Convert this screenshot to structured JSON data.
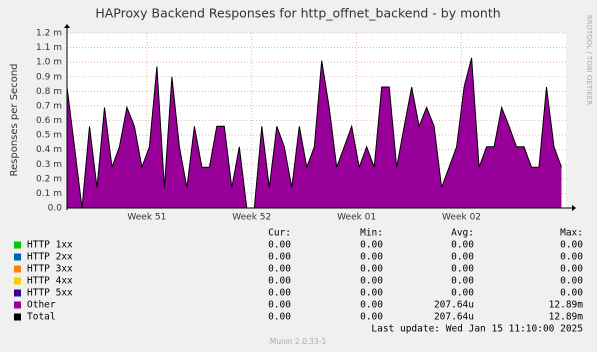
{
  "chart_data": {
    "type": "area",
    "title": "HAProxy Backend Responses for http_offnet_backend - by month",
    "y_label": "Responses per Second",
    "side_text": "RRDTOOL / TOBI OETIKER",
    "footer": "Munin 2.0.33-1",
    "last_update": "Last update: Wed Jan 15 11:10:00 2025",
    "grid": true,
    "xlim": [
      0,
      33.3
    ],
    "xticks": [
      {
        "value": 5.33,
        "label": "Week 51"
      },
      {
        "value": 12.33,
        "label": "Week 52"
      },
      {
        "value": 19.33,
        "label": "Week 01"
      },
      {
        "value": 26.33,
        "label": "Week 02"
      }
    ],
    "ylim": [
      0,
      1.2
    ],
    "yticks": [
      {
        "value": 0,
        "label": "0.0"
      },
      {
        "value": 0.1,
        "label": "0.1 m"
      },
      {
        "value": 0.2,
        "label": "0.2 m"
      },
      {
        "value": 0.3,
        "label": "0.3 m"
      },
      {
        "value": 0.4,
        "label": "0.4 m"
      },
      {
        "value": 0.5,
        "label": "0.5 m"
      },
      {
        "value": 0.6,
        "label": "0.6 m"
      },
      {
        "value": 0.7,
        "label": "0.7 m"
      },
      {
        "value": 0.8,
        "label": "0.8 m"
      },
      {
        "value": 0.9,
        "label": "0.9 m"
      },
      {
        "value": 1.0,
        "label": "1.0 m"
      },
      {
        "value": 1.1,
        "label": "1.1 m"
      },
      {
        "value": 1.2,
        "label": "1.2 m"
      }
    ],
    "stat_headers": [
      "Cur:",
      "Min:",
      "Avg:",
      "Max:"
    ],
    "x": [
      0,
      0.5,
      1,
      1.5,
      2,
      2.5,
      3,
      3.5,
      4,
      4.5,
      5,
      5.5,
      6,
      6.5,
      7,
      7.5,
      8,
      8.5,
      9,
      9.5,
      10,
      10.5,
      11,
      11.5,
      12,
      12.5,
      13,
      13.5,
      14,
      14.5,
      15,
      15.5,
      16,
      16.5,
      17,
      17.5,
      18,
      18.5,
      19,
      19.5,
      20,
      20.5,
      21,
      21.5,
      22,
      22.5,
      23,
      23.5,
      24,
      24.5,
      25,
      25.5,
      26,
      26.5,
      27,
      27.5,
      28,
      28.5,
      29,
      29.5,
      30,
      30.5,
      31,
      31.5,
      32,
      32.5,
      33
    ],
    "series": [
      {
        "name": "HTTP 1xx",
        "color": "#00cc00",
        "stats": [
          "0.00",
          "0.00",
          "0.00",
          "0.00"
        ]
      },
      {
        "name": "HTTP 2xx",
        "color": "#0066b3",
        "stats": [
          "0.00",
          "0.00",
          "0.00",
          "0.00"
        ]
      },
      {
        "name": "HTTP 3xx",
        "color": "#ff8000",
        "stats": [
          "0.00",
          "0.00",
          "0.00",
          "0.00"
        ]
      },
      {
        "name": "HTTP 4xx",
        "color": "#ffcc00",
        "stats": [
          "0.00",
          "0.00",
          "0.00",
          "0.00"
        ]
      },
      {
        "name": "HTTP 5xx",
        "color": "#330099",
        "stats": [
          "0.00",
          "0.00",
          "0.00",
          "0.00"
        ]
      },
      {
        "name": "Other",
        "color": "#990099",
        "stats": [
          "0.00",
          "0.00",
          "207.64u",
          "12.89m"
        ],
        "values": [
          0.83,
          0.42,
          0,
          0.56,
          0.14,
          0.69,
          0.28,
          0.42,
          0.69,
          0.56,
          0.28,
          0.42,
          0.97,
          0.14,
          0.9,
          0.42,
          0.14,
          0.56,
          0.28,
          0.28,
          0.56,
          0.56,
          0.14,
          0.42,
          0,
          0,
          0.56,
          0.14,
          0.56,
          0.42,
          0.14,
          0.56,
          0.28,
          0.42,
          1.01,
          0.69,
          0.28,
          0.42,
          0.56,
          0.28,
          0.42,
          0.28,
          0.83,
          0.83,
          0.28,
          0.56,
          0.83,
          0.56,
          0.69,
          0.56,
          0.14,
          0.28,
          0.42,
          0.83,
          1.03,
          0.28,
          0.42,
          0.42,
          0.69,
          0.56,
          0.42,
          0.42,
          0.28,
          0.28,
          0.83,
          0.42,
          0.28
        ]
      },
      {
        "name": "Total",
        "color": "#000000",
        "stats": [
          "0.00",
          "0.00",
          "207.64u",
          "12.89m"
        ],
        "values": [
          0.83,
          0.42,
          0,
          0.56,
          0.14,
          0.69,
          0.28,
          0.42,
          0.69,
          0.56,
          0.28,
          0.42,
          0.97,
          0.14,
          0.9,
          0.42,
          0.14,
          0.56,
          0.28,
          0.28,
          0.56,
          0.56,
          0.14,
          0.42,
          0,
          0,
          0.56,
          0.14,
          0.56,
          0.42,
          0.14,
          0.56,
          0.28,
          0.42,
          1.01,
          0.69,
          0.28,
          0.42,
          0.56,
          0.28,
          0.42,
          0.28,
          0.83,
          0.83,
          0.28,
          0.56,
          0.83,
          0.56,
          0.69,
          0.56,
          0.14,
          0.28,
          0.42,
          0.83,
          1.03,
          0.28,
          0.42,
          0.42,
          0.69,
          0.56,
          0.42,
          0.42,
          0.28,
          0.28,
          0.83,
          0.42,
          0.28
        ]
      }
    ]
  }
}
